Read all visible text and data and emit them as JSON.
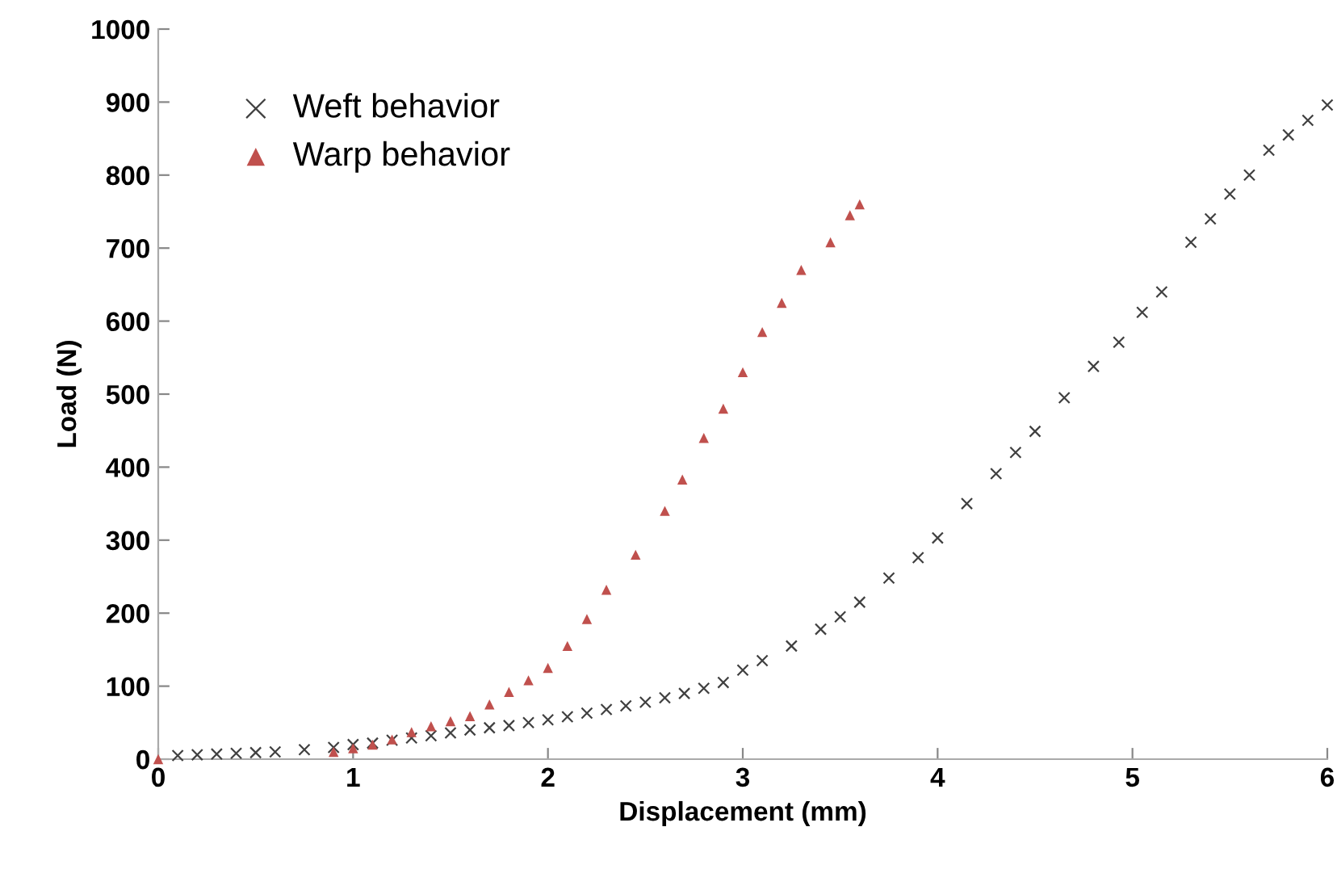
{
  "chart_data": {
    "type": "scatter",
    "xlabel": "Displacement (mm)",
    "ylabel": "Load (N)",
    "xlim": [
      0,
      6
    ],
    "ylim": [
      0,
      1000
    ],
    "xticks": [
      0,
      1,
      2,
      3,
      4,
      5,
      6
    ],
    "yticks": [
      0,
      100,
      200,
      300,
      400,
      500,
      600,
      700,
      800,
      900,
      1000
    ],
    "grid": false,
    "legend": "top left",
    "series": [
      {
        "name": "Weft behavior",
        "color": "#404040",
        "marker": "cross",
        "x": [
          0.1,
          0.2,
          0.3,
          0.4,
          0.5,
          0.6,
          0.75,
          0.9,
          1.0,
          1.1,
          1.2,
          1.3,
          1.4,
          1.5,
          1.6,
          1.7,
          1.8,
          1.9,
          2.0,
          2.1,
          2.2,
          2.3,
          2.4,
          2.5,
          2.6,
          2.7,
          2.8,
          2.9,
          3.0,
          3.1,
          3.25,
          3.4,
          3.5,
          3.6,
          3.75,
          3.9,
          4.0,
          4.15,
          4.3,
          4.4,
          4.5,
          4.65,
          4.8,
          4.93,
          5.05,
          5.15,
          5.3,
          5.4,
          5.5,
          5.6,
          5.7,
          5.8,
          5.9,
          6.0
        ],
        "values": [
          5,
          6,
          7,
          8,
          9,
          10,
          13,
          16,
          20,
          22,
          26,
          29,
          32,
          36,
          40,
          43,
          46,
          50,
          54,
          58,
          63,
          68,
          73,
          78,
          84,
          90,
          97,
          105,
          122,
          135,
          155,
          178,
          195,
          215,
          248,
          276,
          303,
          350,
          391,
          420,
          449,
          495,
          538,
          571,
          612,
          640,
          708,
          740,
          774,
          800,
          834,
          855,
          875,
          896
        ]
      },
      {
        "name": "Warp behavior",
        "color": "#c0504d",
        "marker": "triangle",
        "x": [
          0,
          0.9,
          1.0,
          1.1,
          1.2,
          1.3,
          1.4,
          1.5,
          1.6,
          1.7,
          1.8,
          1.9,
          2.0,
          2.1,
          2.2,
          2.3,
          2.45,
          2.6,
          2.69,
          2.8,
          2.9,
          3.0,
          3.1,
          3.2,
          3.3,
          3.45,
          3.55,
          3.6
        ],
        "values": [
          0,
          10,
          15,
          20,
          27,
          37,
          45,
          52,
          59,
          75,
          92,
          108,
          125,
          155,
          192,
          232,
          280,
          340,
          383,
          440,
          480,
          530,
          585,
          625,
          670,
          708,
          745,
          760
        ]
      }
    ]
  }
}
